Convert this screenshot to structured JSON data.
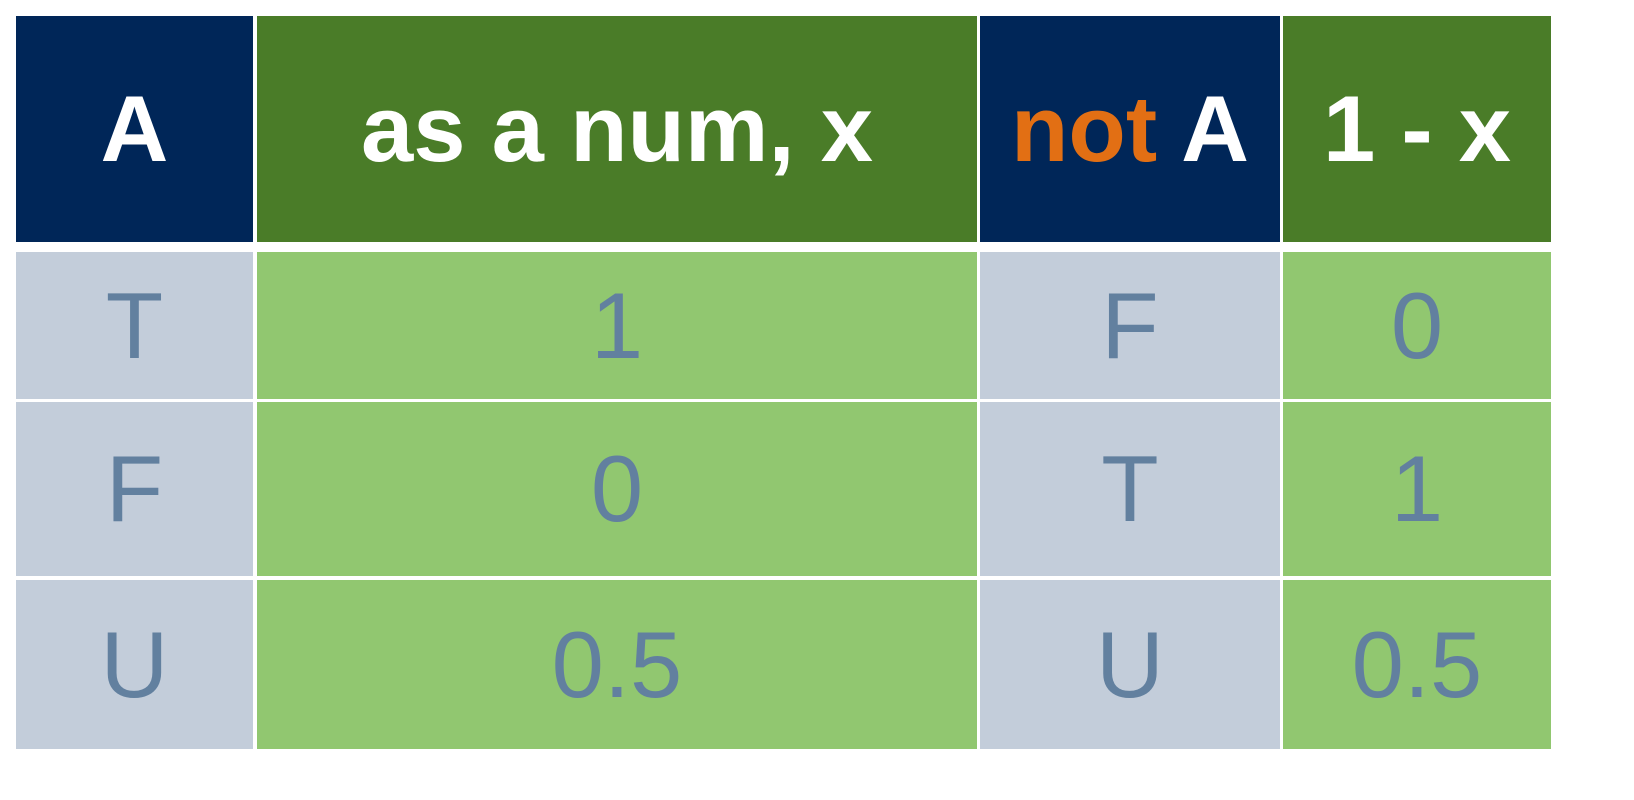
{
  "table": {
    "headers": {
      "a": "A",
      "num": "as a num, x",
      "not_word": "not",
      "not_var": "A",
      "complement": "1 - x"
    },
    "rows": [
      {
        "a": "T",
        "x": "1",
        "not_a": "F",
        "one_minus_x": "0"
      },
      {
        "a": "F",
        "x": "0",
        "not_a": "T",
        "one_minus_x": "1"
      },
      {
        "a": "U",
        "x": "0.5",
        "not_a": "U",
        "one_minus_x": "0.5"
      }
    ]
  },
  "colors": {
    "header_navy": "#002658",
    "header_green": "#4a7c28",
    "body_grey": "#c3cdda",
    "body_green": "#91c770",
    "body_text": "#62809f",
    "not_orange": "#e26f14"
  }
}
